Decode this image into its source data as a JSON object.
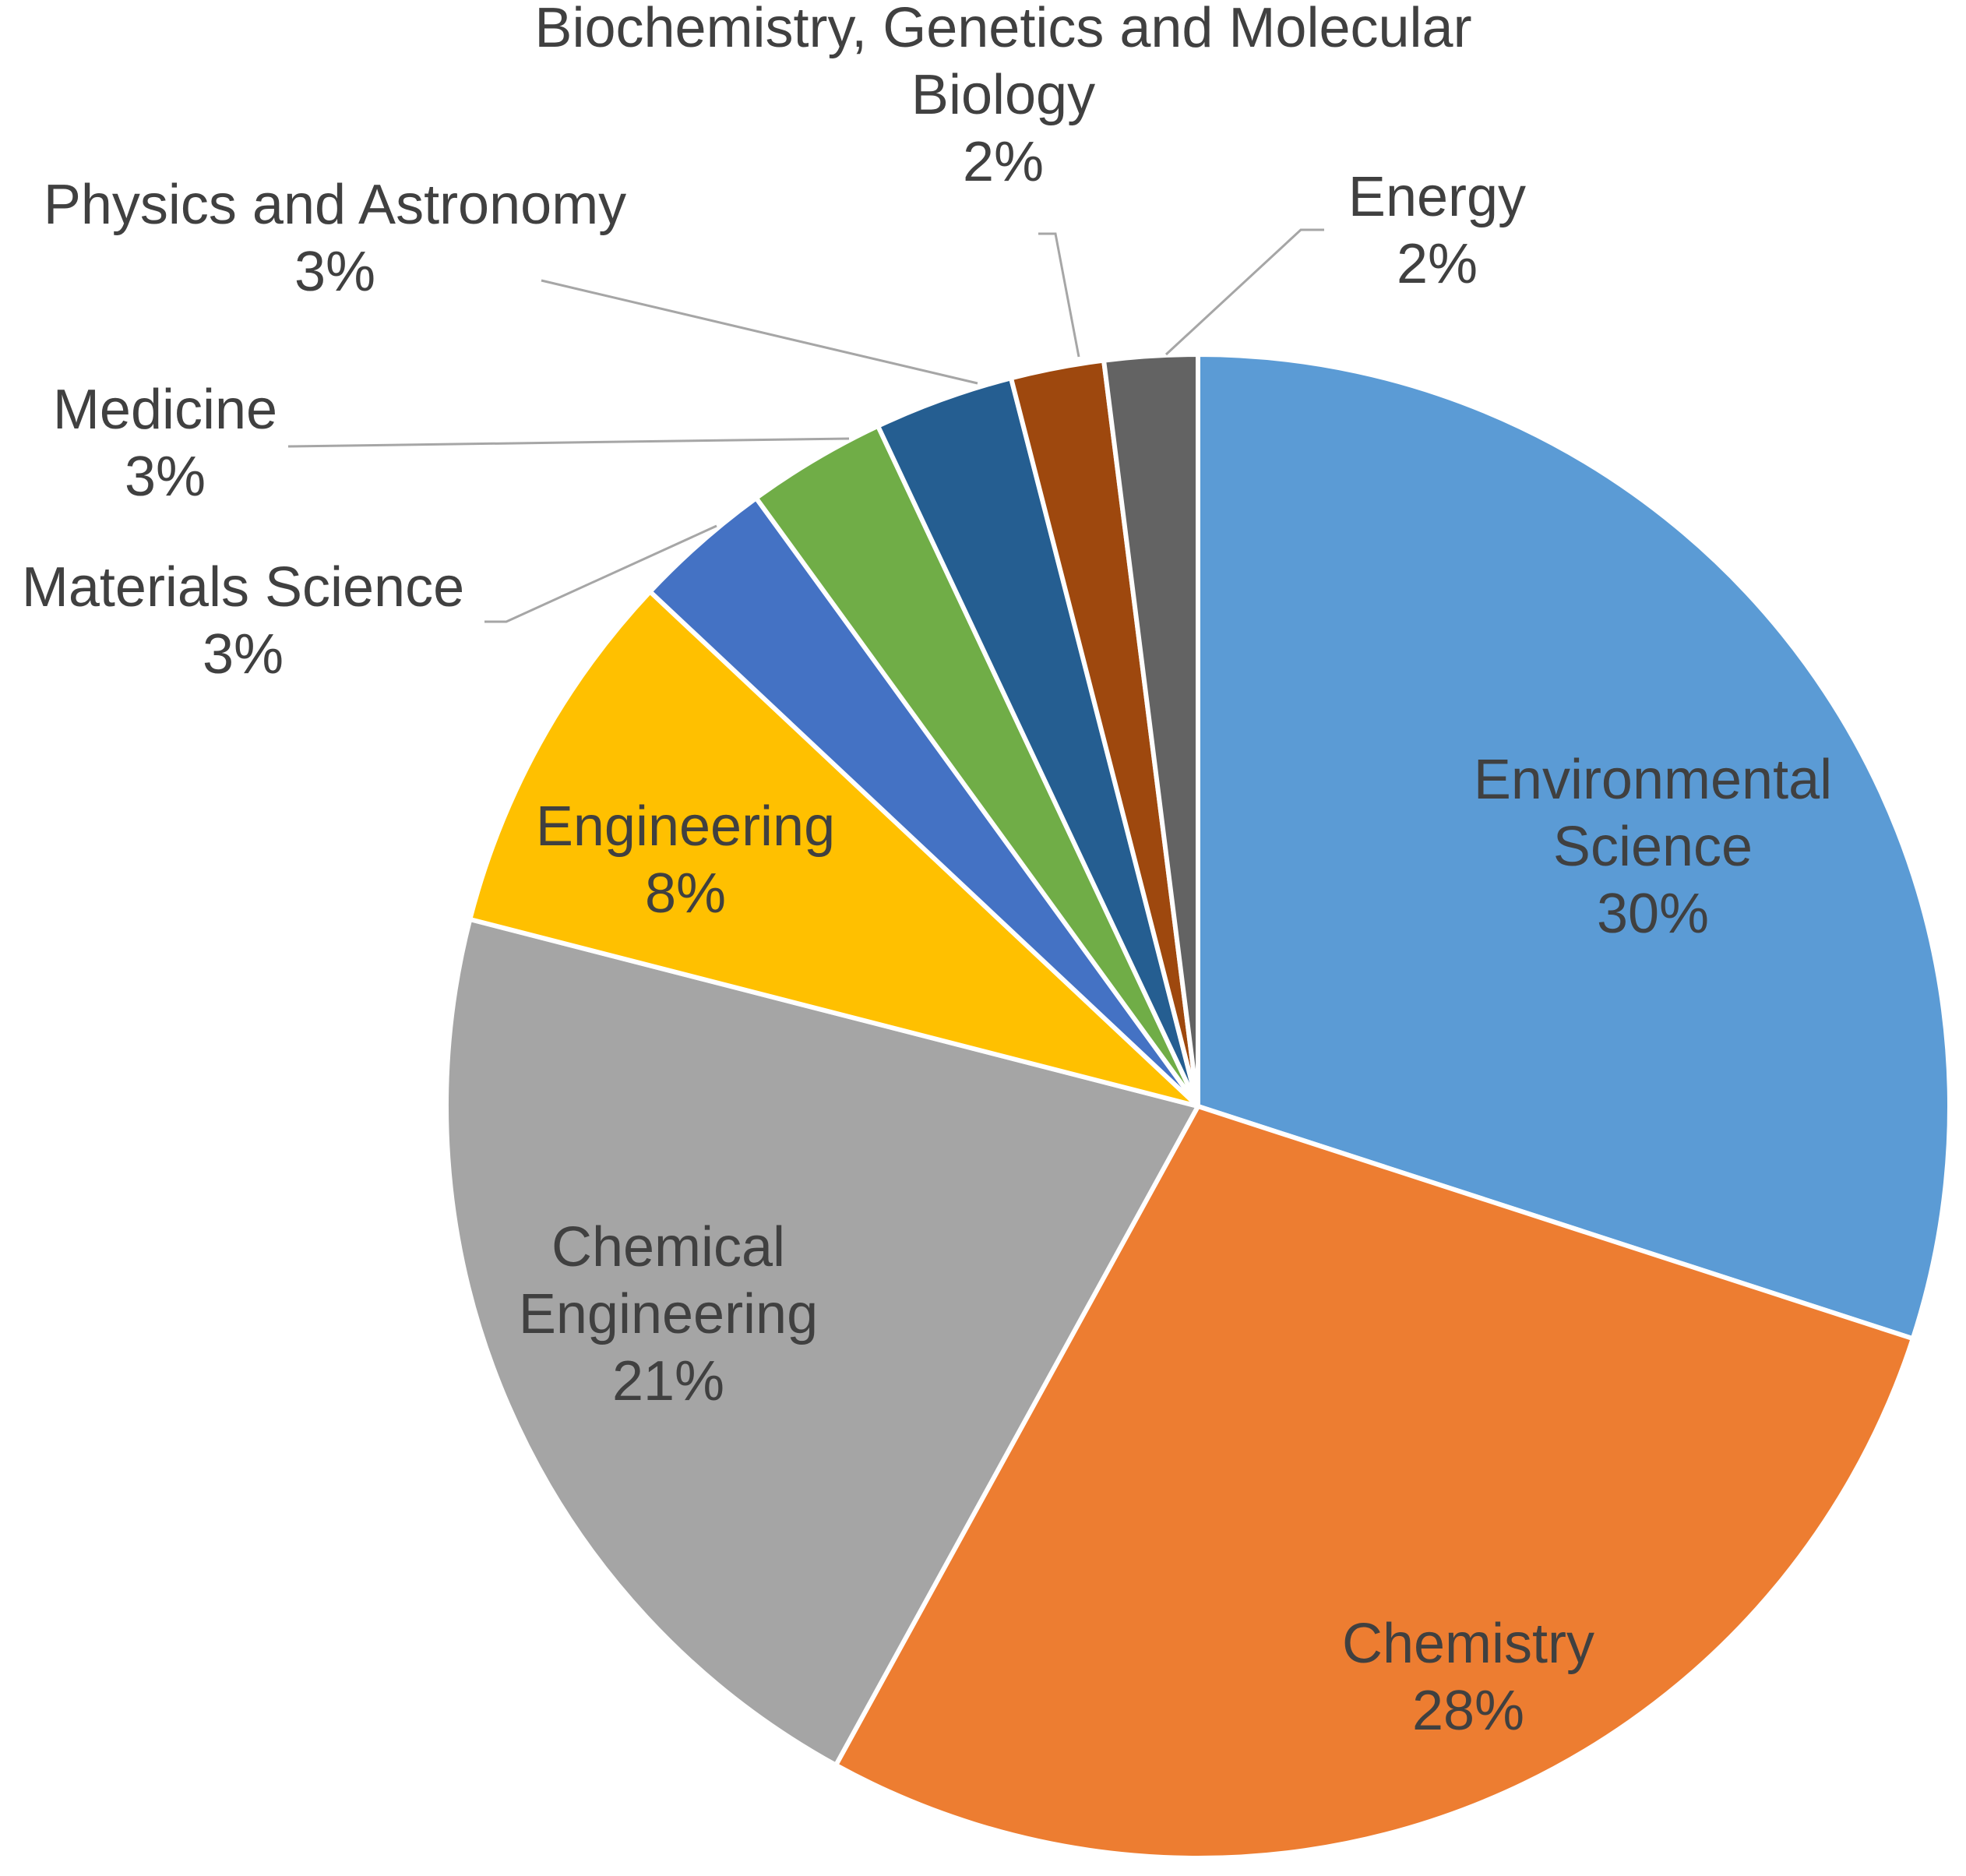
{
  "chart_data": {
    "type": "pie",
    "title": "",
    "slices": [
      {
        "name": "Environmental Science",
        "value": 30,
        "label_lines": [
          "Environmental",
          "Science"
        ],
        "pct_label": "30%",
        "color": "#5b9bd5"
      },
      {
        "name": "Chemistry",
        "value": 28,
        "label_lines": [
          "Chemistry"
        ],
        "pct_label": "28%",
        "color": "#ed7d31"
      },
      {
        "name": "Chemical Engineering",
        "value": 21,
        "label_lines": [
          "Chemical",
          "Engineering"
        ],
        "pct_label": "21%",
        "color": "#a5a5a5"
      },
      {
        "name": "Engineering",
        "value": 8,
        "label_lines": [
          "Engineering"
        ],
        "pct_label": "8%",
        "color": "#ffc000"
      },
      {
        "name": "Materials Science",
        "value": 3,
        "label_lines": [
          "Materials Science"
        ],
        "pct_label": "3%",
        "color": "#4472c4"
      },
      {
        "name": "Medicine",
        "value": 3,
        "label_lines": [
          "Medicine"
        ],
        "pct_label": "3%",
        "color": "#70ad47"
      },
      {
        "name": "Physics and Astronomy",
        "value": 3,
        "label_lines": [
          "Physics and Astronomy"
        ],
        "pct_label": "3%",
        "color": "#255e91"
      },
      {
        "name": "Biochemistry, Genetics and Molecular Biology",
        "value": 2,
        "label_lines": [
          "Biochemistry, Genetics and Molecular",
          "Biology"
        ],
        "pct_label": "2%",
        "color": "#9e480e"
      },
      {
        "name": "Energy",
        "value": 2,
        "label_lines": [
          "Energy"
        ],
        "pct_label": "2%",
        "color": "#636363"
      }
    ],
    "start_angle_deg": 0,
    "direction": "clockwise",
    "legend": "none"
  }
}
